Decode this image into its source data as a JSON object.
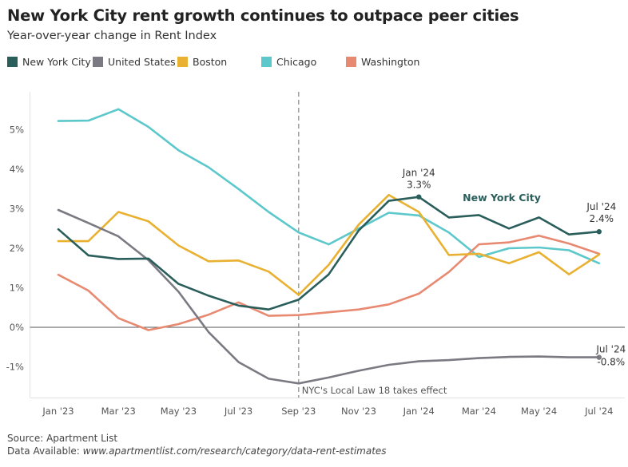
{
  "header": {
    "title": "New York City rent growth continues to outpace peer cities",
    "subtitle": "Year-over-year change in Rent Index"
  },
  "footer": {
    "source": "Source: Apartment List",
    "data_available_label": "Data Available:",
    "data_available_url": "www.apartmentlist.com/research/category/data-rent-estimates"
  },
  "chart_data": {
    "type": "line",
    "title": "New York City rent growth continues to outpace peer cities",
    "subtitle": "Year-over-year change in Rent Index",
    "x": [
      "Jan '23",
      "Feb '23",
      "Mar '23",
      "Apr '23",
      "May '23",
      "Jun '23",
      "Jul '23",
      "Aug '23",
      "Sep '23",
      "Oct '23",
      "Nov '23",
      "Dec '23",
      "Jan '24",
      "Feb '24",
      "Mar '24",
      "Apr '24",
      "May '24",
      "Jun '24",
      "Jul '24"
    ],
    "x_tick_labels": [
      "Jan '23",
      "Mar '23",
      "May '23",
      "Jul '23",
      "Sep '23",
      "Nov '23",
      "Jan '24",
      "Mar '24",
      "May '24",
      "Jul '24"
    ],
    "y_ticks": [
      "-1%",
      "0%",
      "1%",
      "2%",
      "3%",
      "4%",
      "5%"
    ],
    "ylim": [
      -1.75,
      5.9
    ],
    "series": [
      {
        "name": "New York City",
        "color": "#2a5e5b",
        "values": [
          2.48,
          1.82,
          1.73,
          1.74,
          1.1,
          0.8,
          0.55,
          0.45,
          0.7,
          1.34,
          2.45,
          3.2,
          3.3,
          2.78,
          2.84,
          2.5,
          2.78,
          2.35,
          2.42
        ]
      },
      {
        "name": "United States",
        "color": "#7b7a82",
        "values": [
          2.97,
          2.64,
          2.3,
          1.7,
          0.9,
          -0.12,
          -0.88,
          -1.3,
          -1.42,
          -1.27,
          -1.1,
          -0.95,
          -0.86,
          -0.83,
          -0.78,
          -0.75,
          -0.74,
          -0.76,
          -0.76
        ]
      },
      {
        "name": "Boston",
        "color": "#e9b131",
        "values": [
          2.18,
          2.18,
          2.92,
          2.68,
          2.07,
          1.67,
          1.69,
          1.41,
          0.82,
          1.58,
          2.6,
          3.35,
          2.92,
          1.83,
          1.86,
          1.62,
          1.9,
          1.34,
          1.84
        ]
      },
      {
        "name": "Chicago",
        "color": "#5cc8cb",
        "values": [
          5.22,
          5.23,
          5.52,
          5.07,
          4.48,
          4.05,
          3.5,
          2.92,
          2.4,
          2.1,
          2.5,
          2.9,
          2.83,
          2.4,
          1.78,
          2.0,
          2.02,
          1.95,
          1.62
        ]
      },
      {
        "name": "Washington",
        "color": "#e88a72",
        "values": [
          1.33,
          0.93,
          0.23,
          -0.07,
          0.08,
          0.32,
          0.63,
          0.29,
          0.31,
          0.38,
          0.45,
          0.58,
          0.85,
          1.4,
          2.1,
          2.15,
          2.32,
          2.12,
          1.86
        ]
      }
    ],
    "annotations": {
      "nyc_jan24_date": "Jan '24",
      "nyc_jan24_value": "3.3%",
      "nyc_label": "New York City",
      "nyc_jul24_date": "Jul '24",
      "nyc_jul24_value": "2.4%",
      "us_jul24_date": "Jul '24",
      "us_jul24_value": "-0.8%",
      "vline_label": "NYC's Local Law 18 takes effect",
      "vline_x": "Sep '23"
    },
    "grid": false,
    "legend_position": "top"
  }
}
